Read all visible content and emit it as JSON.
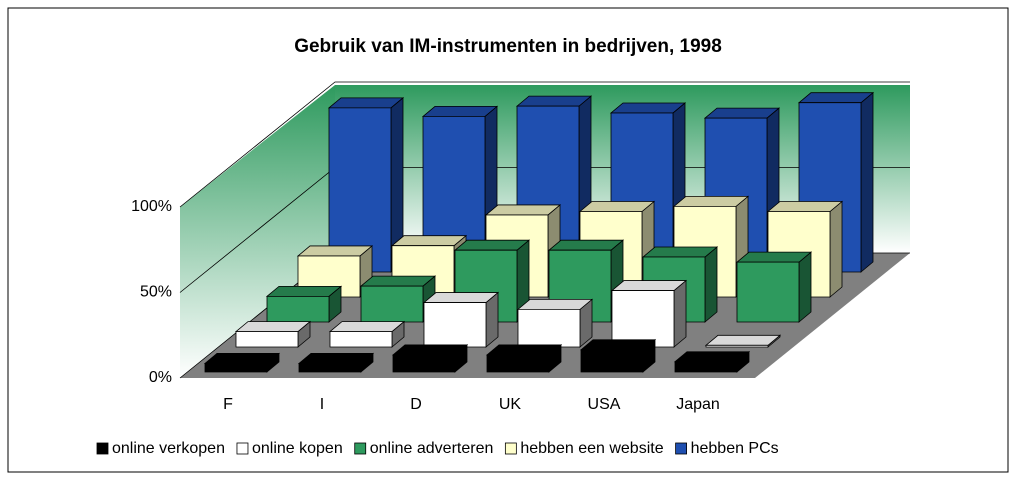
{
  "chart_data": {
    "type": "bar3d",
    "title": "Gebruik van IM-instrumenten in bedrijven, 1998",
    "categories": [
      "F",
      "I",
      "D",
      "UK",
      "USA",
      "Japan"
    ],
    "series": [
      {
        "name": "online verkopen",
        "color": "#000000",
        "values": [
          5,
          5,
          10,
          10,
          13,
          6
        ]
      },
      {
        "name": "online kopen",
        "color": "#ffffff",
        "values": [
          9,
          9,
          26,
          22,
          33,
          1
        ]
      },
      {
        "name": "online adverteren",
        "color": "#2e9a5e",
        "values": [
          15,
          21,
          42,
          42,
          38,
          35
        ]
      },
      {
        "name": "hebben een website",
        "color": "#ffffcc",
        "values": [
          24,
          30,
          48,
          50,
          53,
          50
        ]
      },
      {
        "name": "hebben PCs",
        "color": "#1f4fb0",
        "values": [
          96,
          91,
          97,
          93,
          90,
          99
        ]
      }
    ],
    "ylim": [
      0,
      100
    ],
    "yticks": [
      {
        "value": 0,
        "label": "0%"
      },
      {
        "value": 50,
        "label": "50%"
      },
      {
        "value": 100,
        "label": "100%"
      }
    ],
    "grid": true
  }
}
